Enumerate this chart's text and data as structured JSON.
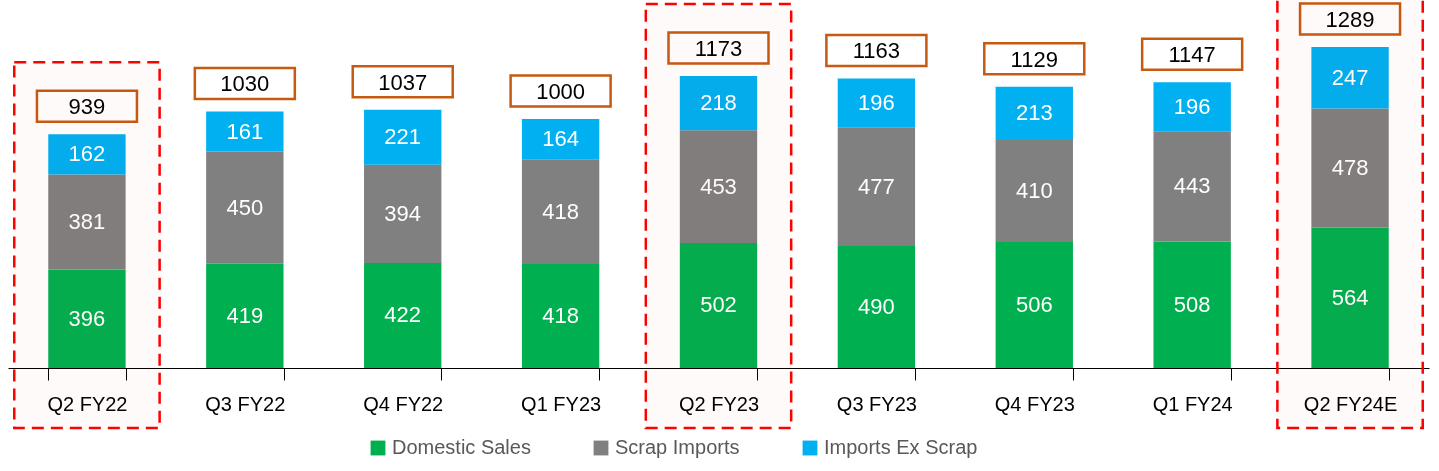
{
  "chart_data": {
    "type": "bar",
    "stacked": true,
    "data_labels": true,
    "legend": "bottom",
    "grid": false,
    "categories": [
      "Q2 FY22",
      "Q3 FY22",
      "Q4 FY22",
      "Q1 FY23",
      "Q2 FY23",
      "Q3 FY23",
      "Q4 FY23",
      "Q1 FY24",
      "Q2 FY24E"
    ],
    "series": [
      {
        "name": "Domestic Sales",
        "color": "#00b050",
        "values": [
          396,
          419,
          422,
          418,
          502,
          490,
          506,
          508,
          564
        ]
      },
      {
        "name": "Scrap Imports",
        "color": "#808080",
        "values": [
          381,
          450,
          394,
          418,
          453,
          477,
          410,
          443,
          478
        ]
      },
      {
        "name": "Imports Ex Scrap",
        "color": "#00b0f0",
        "values": [
          162,
          161,
          221,
          164,
          218,
          196,
          213,
          196,
          247
        ]
      }
    ],
    "totals": [
      "939",
      "1030",
      "1037",
      "1000",
      "1173",
      "1163",
      "1129",
      "1147",
      "1289"
    ],
    "bands": [
      {
        "axis": "x",
        "from": "Q2 FY22",
        "to": "Q2 FY22",
        "color": "#ff0000"
      },
      {
        "axis": "x",
        "from": "Q2 FY23",
        "to": "Q2 FY23",
        "color": "#ff0000"
      },
      {
        "axis": "x",
        "from": "Q2 FY24E",
        "to": "Q2 FY24E",
        "color": "#ff0000"
      }
    ]
  }
}
